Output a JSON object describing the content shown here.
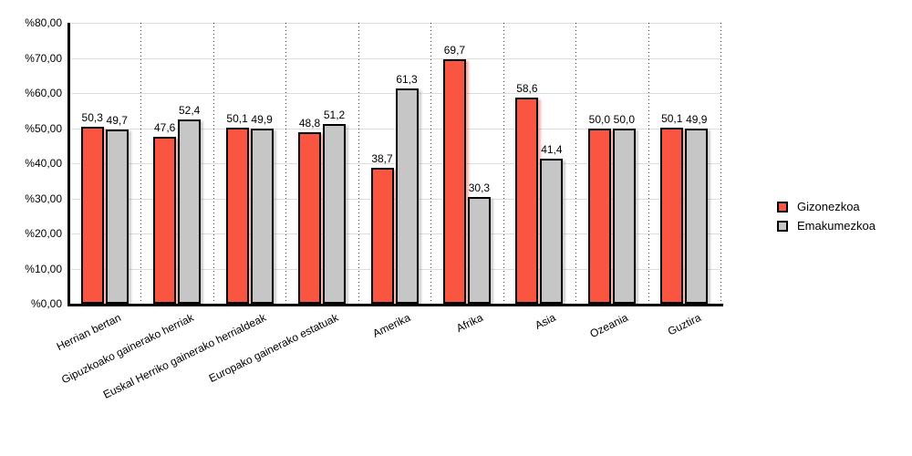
{
  "chart_data": {
    "type": "bar",
    "categories": [
      "Herrian bertan",
      "Gipuzkoako gainerako herriak",
      "Euskal Herriko gainerako herrialdeak",
      "Europako gainerako estatuak",
      "Amerika",
      "Afrika",
      "Asia",
      "Ozeania",
      "Guztira"
    ],
    "series": [
      {
        "name": "Gizonezkoa",
        "color": "#FA5541",
        "shadow_color": "rgba(250,85,65,0.45)",
        "values": [
          50.3,
          47.6,
          50.1,
          48.8,
          38.7,
          69.7,
          58.6,
          50.0,
          50.1
        ],
        "value_labels": [
          "50,3",
          "47,6",
          "50,1",
          "48,8",
          "38,7",
          "69,7",
          "58,6",
          "50,0",
          "50,1"
        ]
      },
      {
        "name": "Emakumezkoa",
        "color": "#C6C6C6",
        "shadow_color": "rgba(130,130,130,0.35)",
        "values": [
          49.7,
          52.4,
          49.9,
          51.2,
          61.3,
          30.3,
          41.4,
          50.0,
          49.9
        ],
        "value_labels": [
          "49,7",
          "52,4",
          "49,9",
          "51,2",
          "61,3",
          "30,3",
          "41,4",
          "50,0",
          "49,9"
        ]
      }
    ],
    "y_tick_labels": [
      "%0,00",
      "%10,00",
      "%20,00",
      "%30,00",
      "%40,00",
      "%50,00",
      "%60,00",
      "%70,00",
      "%80,00"
    ],
    "ylim": [
      0,
      80
    ],
    "grid": true,
    "legend_position": "right"
  }
}
